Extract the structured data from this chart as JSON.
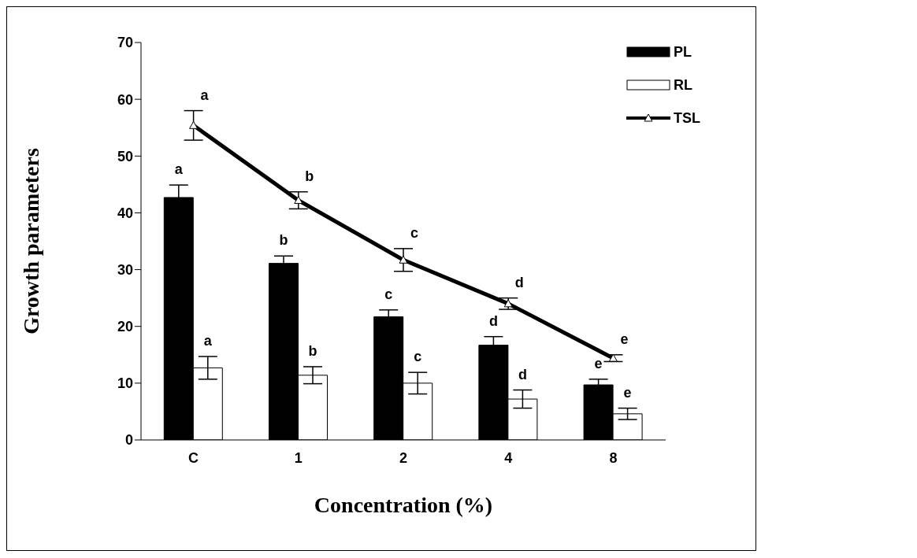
{
  "chart_data": {
    "type": "bar",
    "xlabel": "Concentration (%)",
    "ylabel": "Growth parameters",
    "categories": [
      "C",
      "1",
      "2",
      "4",
      "8"
    ],
    "series": [
      {
        "name": "PL",
        "color": "#000000",
        "values": [
          42.7,
          31.1,
          21.7,
          16.7,
          9.7
        ],
        "errors": [
          2.2,
          1.3,
          1.2,
          1.5,
          1.0
        ],
        "value_labels": [
          "a",
          "b",
          "c",
          "d",
          "e"
        ]
      },
      {
        "name": "RL",
        "color": "#ffffff",
        "values": [
          12.7,
          11.4,
          10.0,
          7.2,
          4.6
        ],
        "errors": [
          2.0,
          1.5,
          1.9,
          1.6,
          1.0
        ],
        "value_labels": [
          "a",
          "b",
          "c",
          "d",
          "e"
        ]
      },
      {
        "name": "TSL",
        "type": "line",
        "color": "#000000",
        "values": [
          55.4,
          42.2,
          31.7,
          24.0,
          14.4
        ],
        "errors": [
          2.6,
          1.5,
          2.0,
          1.0,
          0.6
        ],
        "value_labels": [
          "a",
          "b",
          "c",
          "d",
          "e"
        ],
        "marker": "triangle"
      }
    ],
    "ylim": [
      0,
      70
    ],
    "yticks": [
      0,
      10,
      20,
      30,
      40,
      50,
      60,
      70
    ],
    "legend": "top right"
  }
}
